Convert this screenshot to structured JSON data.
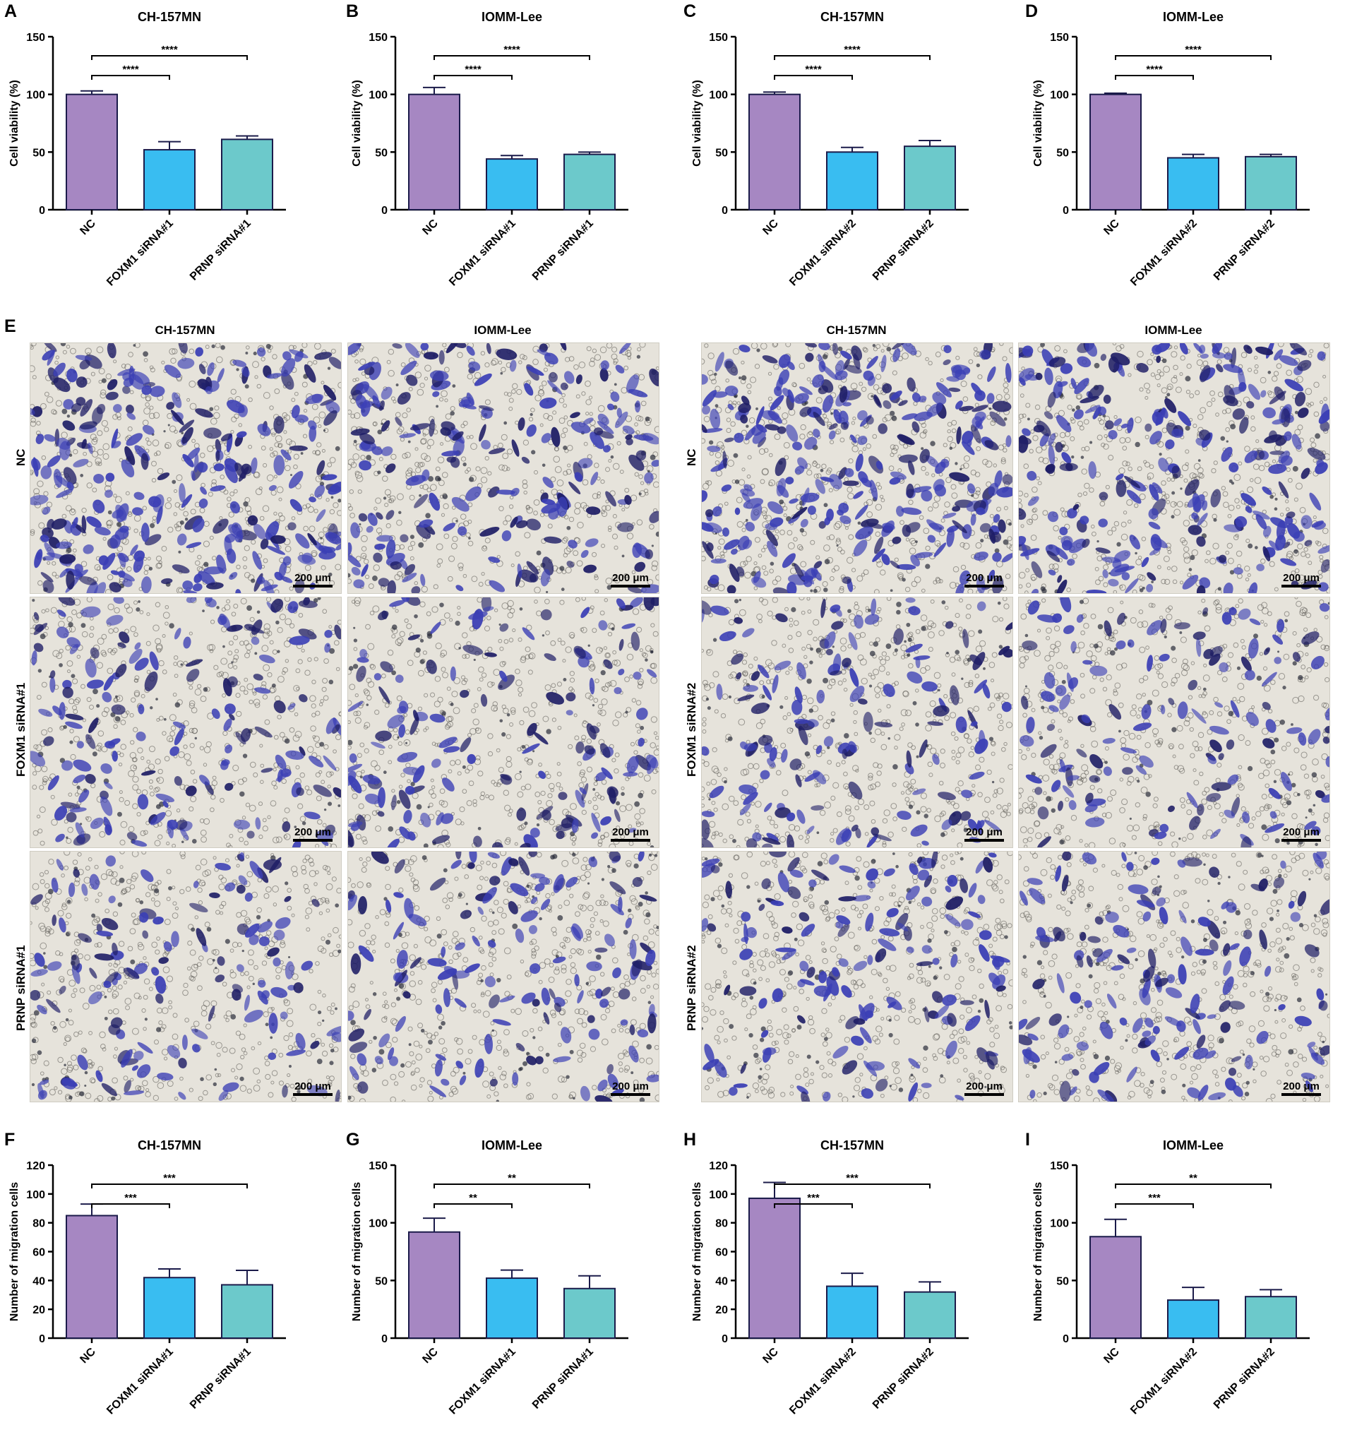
{
  "panel_letters": {
    "A": "A",
    "B": "B",
    "C": "C",
    "D": "D",
    "E": "E",
    "F": "F",
    "G": "G",
    "H": "H",
    "I": "I"
  },
  "colors": {
    "nc": "#A687C2",
    "foxm1": "#39BDF1",
    "prnp": "#6CC9CB",
    "stain": "#3B3FB5",
    "background": "#E6E3DB"
  },
  "chart_data": [
    {
      "id": "A",
      "type": "bar",
      "title": "CH-157MN",
      "ylabel": "Cell viability (%)",
      "ylim": [
        0,
        150
      ],
      "yticks": [
        0,
        50,
        100,
        150
      ],
      "categories": [
        "NC",
        "FOXM1 siRNA#1",
        "PRNP siRNA#1"
      ],
      "values": [
        100,
        52,
        61
      ],
      "errors": [
        3,
        7,
        3
      ],
      "significance": [
        {
          "from": 0,
          "to": 1,
          "label": "****"
        },
        {
          "from": 0,
          "to": 2,
          "label": "****"
        }
      ]
    },
    {
      "id": "B",
      "type": "bar",
      "title": "IOMM-Lee",
      "ylabel": "Cell viability (%)",
      "ylim": [
        0,
        150
      ],
      "yticks": [
        0,
        50,
        100,
        150
      ],
      "categories": [
        "NC",
        "FOXM1 siRNA#1",
        "PRNP siRNA#1"
      ],
      "values": [
        100,
        44,
        48
      ],
      "errors": [
        6,
        3,
        2
      ],
      "significance": [
        {
          "from": 0,
          "to": 1,
          "label": "****"
        },
        {
          "from": 0,
          "to": 2,
          "label": "****"
        }
      ]
    },
    {
      "id": "C",
      "type": "bar",
      "title": "CH-157MN",
      "ylabel": "Cell viability (%)",
      "ylim": [
        0,
        150
      ],
      "yticks": [
        0,
        50,
        100,
        150
      ],
      "categories": [
        "NC",
        "FOXM1 siRNA#2",
        "PRNP siRNA#2"
      ],
      "values": [
        100,
        50,
        55
      ],
      "errors": [
        2,
        4,
        5
      ],
      "significance": [
        {
          "from": 0,
          "to": 1,
          "label": "****"
        },
        {
          "from": 0,
          "to": 2,
          "label": "****"
        }
      ]
    },
    {
      "id": "D",
      "type": "bar",
      "title": "IOMM-Lee",
      "ylabel": "Cell viability (%)",
      "ylim": [
        0,
        150
      ],
      "yticks": [
        0,
        50,
        100,
        150
      ],
      "categories": [
        "NC",
        "FOXM1 siRNA#2",
        "PRNP siRNA#2"
      ],
      "values": [
        100,
        45,
        46
      ],
      "errors": [
        1,
        3,
        2
      ],
      "significance": [
        {
          "from": 0,
          "to": 1,
          "label": "****"
        },
        {
          "from": 0,
          "to": 2,
          "label": "****"
        }
      ]
    },
    {
      "id": "F",
      "type": "bar",
      "title": "CH-157MN",
      "ylabel": "Number of migration cells",
      "ylim": [
        0,
        120
      ],
      "yticks": [
        0,
        20,
        40,
        60,
        80,
        100,
        120
      ],
      "categories": [
        "NC",
        "FOXM1 siRNA#1",
        "PRNP siRNA#1"
      ],
      "values": [
        85,
        42,
        37
      ],
      "errors": [
        8,
        6,
        10
      ],
      "significance": [
        {
          "from": 0,
          "to": 1,
          "label": "***"
        },
        {
          "from": 0,
          "to": 2,
          "label": "***"
        }
      ]
    },
    {
      "id": "G",
      "type": "bar",
      "title": "IOMM-Lee",
      "ylabel": "Number of migration cells",
      "ylim": [
        0,
        150
      ],
      "yticks": [
        0,
        50,
        100,
        150
      ],
      "categories": [
        "NC",
        "FOXM1 siRNA#1",
        "PRNP siRNA#1"
      ],
      "values": [
        92,
        52,
        43
      ],
      "errors": [
        12,
        7,
        11
      ],
      "significance": [
        {
          "from": 0,
          "to": 1,
          "label": "**"
        },
        {
          "from": 0,
          "to": 2,
          "label": "**"
        }
      ]
    },
    {
      "id": "H",
      "type": "bar",
      "title": "CH-157MN",
      "ylabel": "Number of migration cells",
      "ylim": [
        0,
        120
      ],
      "yticks": [
        0,
        20,
        40,
        60,
        80,
        100,
        120
      ],
      "categories": [
        "NC",
        "FOXM1 siRNA#2",
        "PRNP siRNA#2"
      ],
      "values": [
        97,
        36,
        32
      ],
      "errors": [
        11,
        9,
        7
      ],
      "significance": [
        {
          "from": 0,
          "to": 1,
          "label": "***"
        },
        {
          "from": 0,
          "to": 2,
          "label": "***"
        }
      ]
    },
    {
      "id": "I",
      "type": "bar",
      "title": "IOMM-Lee",
      "ylabel": "Number of migration cells",
      "ylim": [
        0,
        150
      ],
      "yticks": [
        0,
        50,
        100,
        150
      ],
      "categories": [
        "NC",
        "FOXM1 siRNA#2",
        "PRNP siRNA#2"
      ],
      "values": [
        88,
        33,
        36
      ],
      "errors": [
        15,
        11,
        6
      ],
      "significance": [
        {
          "from": 0,
          "to": 1,
          "label": "***"
        },
        {
          "from": 0,
          "to": 2,
          "label": "**"
        }
      ]
    }
  ],
  "micrographs": {
    "column_titles": [
      "CH-157MN",
      "IOMM-Lee",
      "CH-157MN",
      "IOMM-Lee"
    ],
    "row_labels_left": [
      "NC",
      "FOXM1 siRNA#1",
      "PRNP siRNA#1"
    ],
    "row_labels_right": [
      "NC",
      "FOXM1 siRNA#2",
      "PRNP siRNA#2"
    ],
    "scale_bar_label": "200 μm",
    "stain_density": [
      [
        0.9,
        0.6,
        1.0,
        0.8
      ],
      [
        0.4,
        0.35,
        0.35,
        0.3
      ],
      [
        0.3,
        0.35,
        0.35,
        0.35
      ]
    ]
  }
}
